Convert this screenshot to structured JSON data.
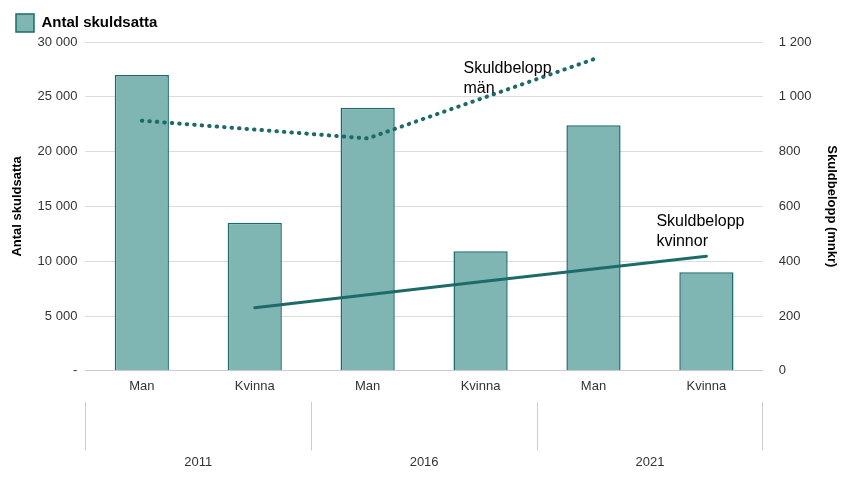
{
  "chart_data": {
    "type": "bar",
    "categories": [
      "Man",
      "Kvinna",
      "Man",
      "Kvinna",
      "Man",
      "Kvinna"
    ],
    "category_groups": [
      "2011",
      "2016",
      "2021"
    ],
    "y_label": "Antal skuldsatta",
    "y2_label": "Skuldbelopp (mnkr)",
    "series": [
      {
        "name": "Antal skuldsatta",
        "type": "bar",
        "color": "#7fb5b3",
        "values": [
          27000,
          13500,
          24000,
          10900,
          22400,
          9000
        ]
      },
      {
        "name": "Skuldbelopp män",
        "type": "line",
        "axis": "y2",
        "color": "#1d6b68",
        "line_style": "dotted",
        "values": [
          913,
          null,
          848,
          null,
          1137,
          null
        ]
      },
      {
        "name": "Skuldbelopp kvinnor",
        "type": "line",
        "axis": "y2",
        "color": "#1d6b68",
        "line_style": "solid",
        "values": [
          null,
          230,
          null,
          325,
          null,
          418
        ]
      }
    ],
    "ylim": [
      0,
      30000
    ],
    "yticks": [
      {
        "value": 0,
        "label": "-"
      },
      {
        "value": 5000,
        "label": "5 000"
      },
      {
        "value": 10000,
        "label": "10 000"
      },
      {
        "value": 15000,
        "label": "15 000"
      },
      {
        "value": 20000,
        "label": "20 000"
      },
      {
        "value": 25000,
        "label": "25 000"
      },
      {
        "value": 30000,
        "label": "30 000"
      }
    ],
    "y2lim": [
      0,
      1200
    ],
    "y2ticks": [
      0,
      200,
      400,
      600,
      800,
      {
        "value": 1000,
        "label": "1 000"
      },
      {
        "value": 1200,
        "label": "1 200"
      }
    ],
    "grid": true,
    "legend": "top"
  }
}
